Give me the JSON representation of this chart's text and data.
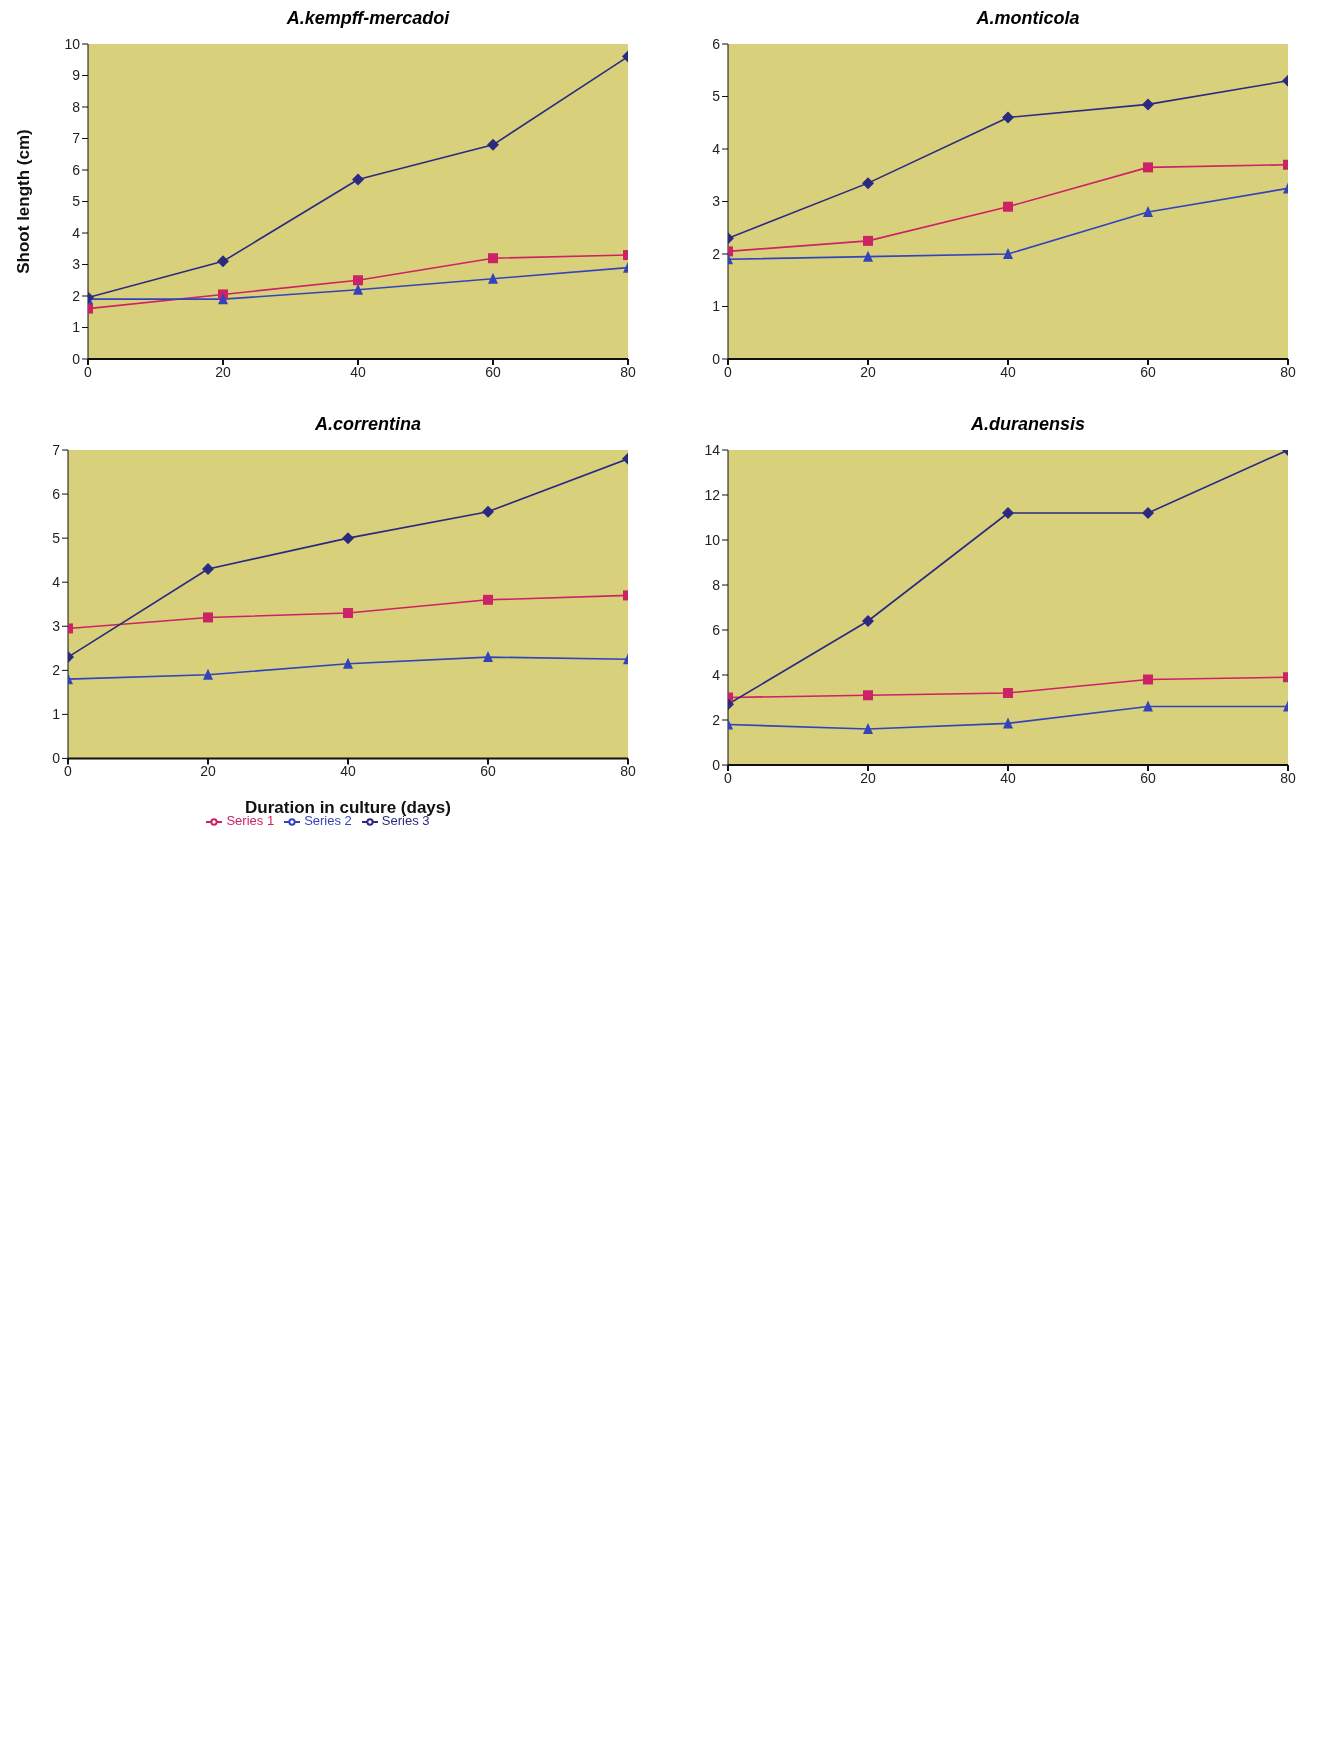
{
  "chart_data": [
    {
      "type": "line",
      "title": "A.kempff-mercadoi",
      "ylabel": "Shoot length (cm)",
      "x": [
        0,
        20,
        40,
        60,
        80
      ],
      "xlim": [
        0,
        80
      ],
      "xticks": [
        0,
        20,
        40,
        60,
        80
      ],
      "ylim": [
        0,
        10
      ],
      "yticks": [
        0,
        1,
        2,
        3,
        4,
        5,
        6,
        7,
        8,
        9,
        10
      ],
      "grid": false,
      "legend": false,
      "series": [
        {
          "color": "#cc2266",
          "marker": "square",
          "values": [
            1.6,
            2.05,
            2.5,
            3.2,
            3.3
          ]
        },
        {
          "color": "#3344bb",
          "marker": "triangle",
          "values": [
            1.9,
            1.9,
            2.2,
            2.55,
            2.9
          ]
        },
        {
          "color": "#2a2a80",
          "marker": "diamond",
          "values": [
            1.95,
            3.1,
            5.7,
            6.8,
            9.6
          ]
        }
      ]
    },
    {
      "type": "line",
      "title": "A.monticola",
      "x": [
        0,
        20,
        40,
        60,
        80
      ],
      "xlim": [
        0,
        80
      ],
      "xticks": [
        0,
        20,
        40,
        60,
        80
      ],
      "ylim": [
        0,
        6
      ],
      "yticks": [
        0,
        1,
        2,
        3,
        4,
        5,
        6
      ],
      "grid": false,
      "legend": false,
      "series": [
        {
          "color": "#cc2266",
          "marker": "square",
          "values": [
            2.05,
            2.25,
            2.9,
            3.65,
            3.7
          ]
        },
        {
          "color": "#3344bb",
          "marker": "triangle",
          "values": [
            1.9,
            1.95,
            2.0,
            2.8,
            3.25
          ]
        },
        {
          "color": "#2a2a80",
          "marker": "diamond",
          "values": [
            2.3,
            3.35,
            4.6,
            4.85,
            5.3
          ]
        }
      ]
    },
    {
      "type": "line",
      "title": "A.correntina",
      "xlabel": "Duration in culture (days)",
      "x": [
        0,
        20,
        40,
        60,
        80
      ],
      "xlim": [
        0,
        80
      ],
      "xticks": [
        0,
        20,
        40,
        60,
        80
      ],
      "ylim": [
        0,
        7
      ],
      "yticks": [
        0,
        1,
        2,
        3,
        4,
        5,
        6,
        7
      ],
      "grid": false,
      "legend": "bottom",
      "series": [
        {
          "name": "Series 1",
          "color": "#cc2266",
          "marker": "square",
          "values": [
            2.95,
            3.2,
            3.3,
            3.6,
            3.7
          ]
        },
        {
          "name": "Series 2",
          "color": "#3344bb",
          "marker": "triangle",
          "values": [
            1.8,
            1.9,
            2.15,
            2.3,
            2.25
          ]
        },
        {
          "name": "Series 3",
          "color": "#2a2a80",
          "marker": "diamond",
          "values": [
            2.3,
            4.3,
            5.0,
            5.6,
            6.8
          ]
        }
      ]
    },
    {
      "type": "line",
      "title": "A.duranensis",
      "x": [
        0,
        20,
        40,
        60,
        80
      ],
      "xlim": [
        0,
        80
      ],
      "xticks": [
        0,
        20,
        40,
        60,
        80
      ],
      "ylim": [
        0,
        14
      ],
      "yticks": [
        0,
        2,
        4,
        6,
        8,
        10,
        12,
        14
      ],
      "grid": false,
      "legend": false,
      "series": [
        {
          "color": "#cc2266",
          "marker": "square",
          "values": [
            3.0,
            3.1,
            3.2,
            3.8,
            3.9
          ]
        },
        {
          "color": "#3344bb",
          "marker": "triangle",
          "values": [
            1.8,
            1.6,
            1.85,
            2.6,
            2.6
          ]
        },
        {
          "color": "#2a2a80",
          "marker": "diamond",
          "values": [
            2.7,
            6.4,
            11.2,
            11.2,
            14
          ]
        }
      ]
    }
  ]
}
